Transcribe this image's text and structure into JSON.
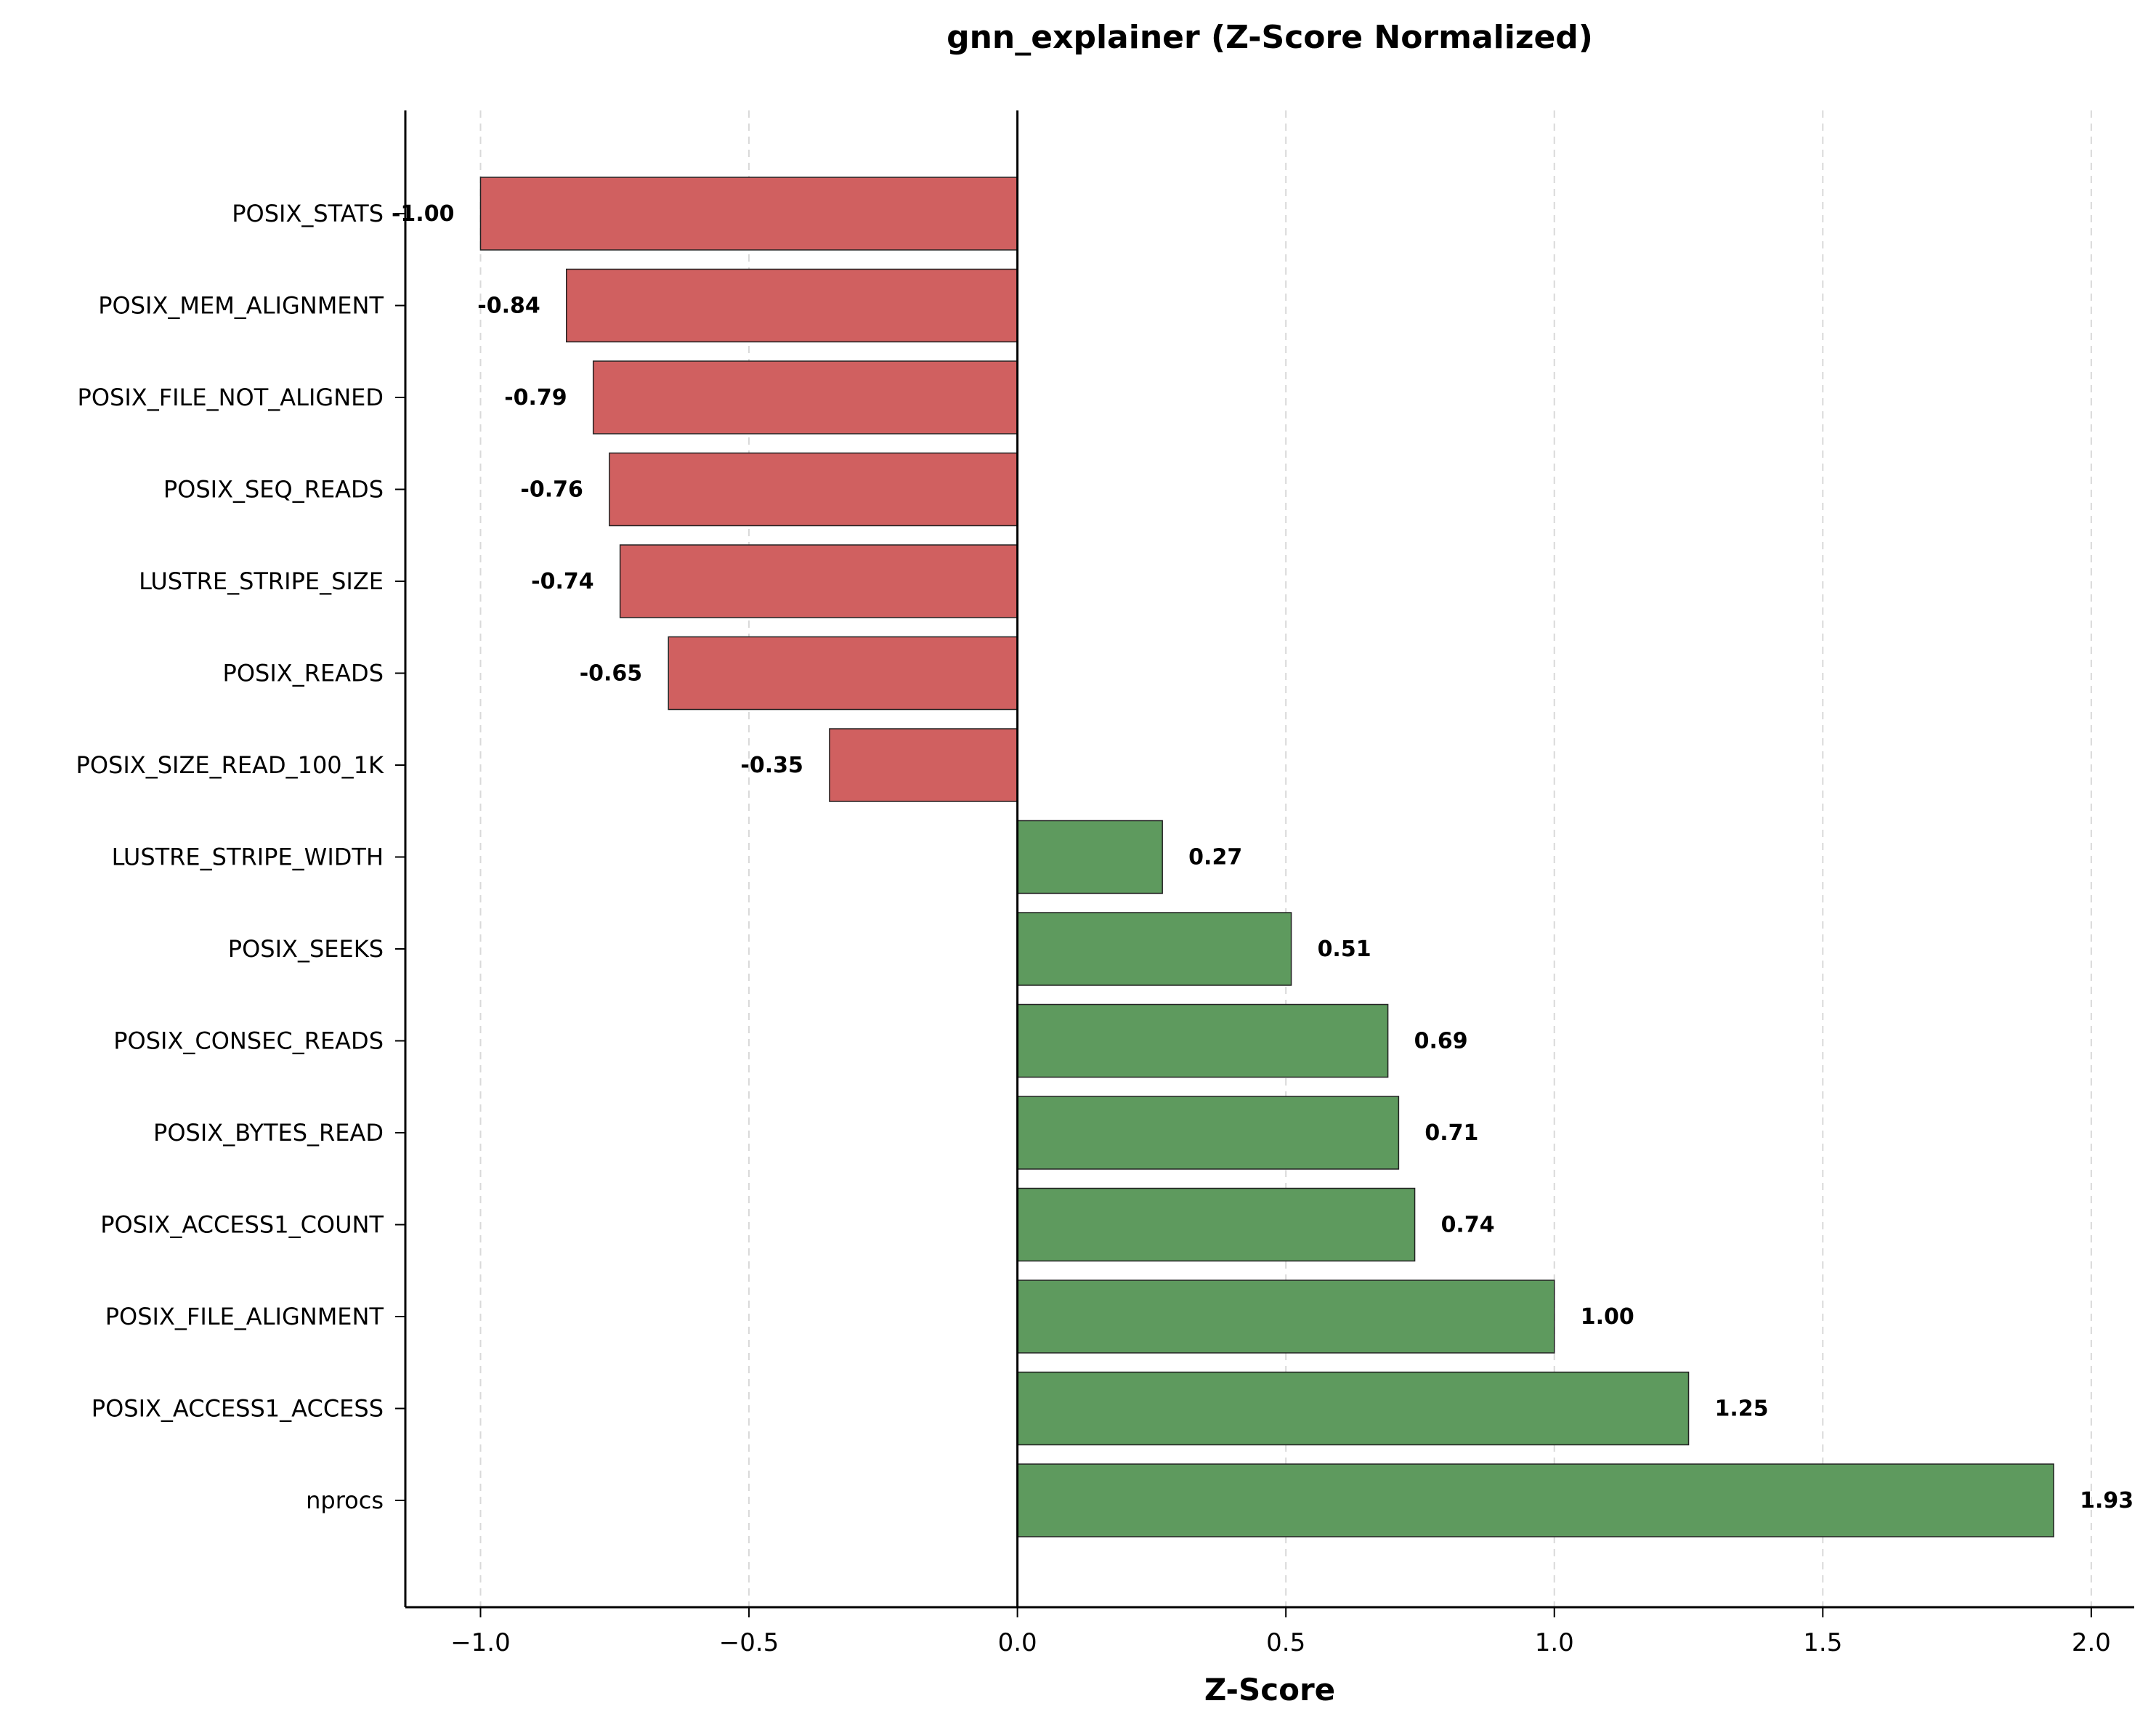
{
  "chart_data": {
    "type": "bar",
    "orientation": "horizontal",
    "title": "gnn_explainer (Z-Score Normalized)",
    "xlabel": "Z-Score",
    "ylabel": "",
    "xlim": [
      -1.14,
      2.08
    ],
    "xticks": [
      -1.0,
      -0.5,
      0.0,
      0.5,
      1.0,
      1.5,
      2.0
    ],
    "xtick_labels": [
      "−1.0",
      "−0.5",
      "0.0",
      "0.5",
      "1.0",
      "1.5",
      "2.0"
    ],
    "grid": "x-dashed",
    "categories": [
      "POSIX_STATS",
      "POSIX_MEM_ALIGNMENT",
      "POSIX_FILE_NOT_ALIGNED",
      "POSIX_SEQ_READS",
      "LUSTRE_STRIPE_SIZE",
      "POSIX_READS",
      "POSIX_SIZE_READ_100_1K",
      "LUSTRE_STRIPE_WIDTH",
      "POSIX_SEEKS",
      "POSIX_CONSEC_READS",
      "POSIX_BYTES_READ",
      "POSIX_ACCESS1_COUNT",
      "POSIX_FILE_ALIGNMENT",
      "POSIX_ACCESS1_ACCESS",
      "nprocs"
    ],
    "values": [
      -1.0,
      -0.84,
      -0.79,
      -0.76,
      -0.74,
      -0.65,
      -0.35,
      0.27,
      0.51,
      0.69,
      0.71,
      0.74,
      1.0,
      1.25,
      1.93
    ],
    "value_labels": [
      "-1.00",
      "-0.84",
      "-0.79",
      "-0.76",
      "-0.74",
      "-0.65",
      "-0.35",
      "0.27",
      "0.51",
      "0.69",
      "0.71",
      "0.74",
      "1.00",
      "1.25",
      "1.93"
    ],
    "colors": {
      "negative": "#d06060",
      "positive": "#5e9a5e",
      "edge": "#222222"
    }
  }
}
